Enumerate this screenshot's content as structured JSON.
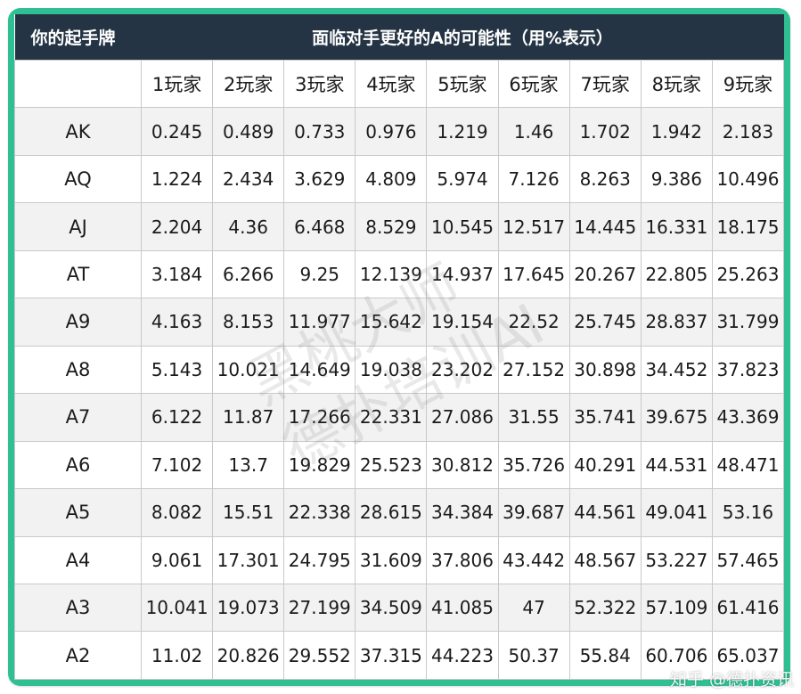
{
  "title_row": {
    "corner_label": "你的起手牌",
    "title": "面临对手更好的A的可能性（用%表示）"
  },
  "columns": [
    "1玩家",
    "2玩家",
    "3玩家",
    "4玩家",
    "5玩家",
    "6玩家",
    "7玩家",
    "8玩家",
    "9玩家"
  ],
  "rows": [
    {
      "hand": "AK",
      "values": [
        "0.245",
        "0.489",
        "0.733",
        "0.976",
        "1.219",
        "1.46",
        "1.702",
        "1.942",
        "2.183"
      ]
    },
    {
      "hand": "AQ",
      "values": [
        "1.224",
        "2.434",
        "3.629",
        "4.809",
        "5.974",
        "7.126",
        "8.263",
        "9.386",
        "10.496"
      ]
    },
    {
      "hand": "AJ",
      "values": [
        "2.204",
        "4.36",
        "6.468",
        "8.529",
        "10.545",
        "12.517",
        "14.445",
        "16.331",
        "18.175"
      ]
    },
    {
      "hand": "AT",
      "values": [
        "3.184",
        "6.266",
        "9.25",
        "12.139",
        "14.937",
        "17.645",
        "20.267",
        "22.805",
        "25.263"
      ]
    },
    {
      "hand": "A9",
      "values": [
        "4.163",
        "8.153",
        "11.977",
        "15.642",
        "19.154",
        "22.52",
        "25.745",
        "28.837",
        "31.799"
      ]
    },
    {
      "hand": "A8",
      "values": [
        "5.143",
        "10.021",
        "14.649",
        "19.038",
        "23.202",
        "27.152",
        "30.898",
        "34.452",
        "37.823"
      ]
    },
    {
      "hand": "A7",
      "values": [
        "6.122",
        "11.87",
        "17.266",
        "22.331",
        "27.086",
        "31.55",
        "35.741",
        "39.675",
        "43.369"
      ]
    },
    {
      "hand": "A6",
      "values": [
        "7.102",
        "13.7",
        "19.829",
        "25.523",
        "30.812",
        "35.726",
        "40.291",
        "44.531",
        "48.471"
      ]
    },
    {
      "hand": "A5",
      "values": [
        "8.082",
        "15.51",
        "22.338",
        "28.615",
        "34.384",
        "39.687",
        "44.561",
        "49.041",
        "53.16"
      ]
    },
    {
      "hand": "A4",
      "values": [
        "9.061",
        "17.301",
        "24.795",
        "31.609",
        "37.806",
        "43.442",
        "48.567",
        "53.227",
        "57.465"
      ]
    },
    {
      "hand": "A3",
      "values": [
        "10.041",
        "19.073",
        "27.199",
        "34.509",
        "41.085",
        "47",
        "52.322",
        "57.109",
        "61.416"
      ]
    },
    {
      "hand": "A2",
      "values": [
        "11.02",
        "20.826",
        "29.552",
        "37.315",
        "44.223",
        "50.37",
        "55.84",
        "60.706",
        "65.037"
      ]
    }
  ],
  "watermark": {
    "line1": "黑桃大师",
    "line2": "德扑培训AI"
  },
  "footer_watermark": "知乎 @德扑资讯",
  "colors": {
    "frame": "#2fbf93",
    "header_bg": "#253444",
    "stripe": "#f2f2f2"
  }
}
